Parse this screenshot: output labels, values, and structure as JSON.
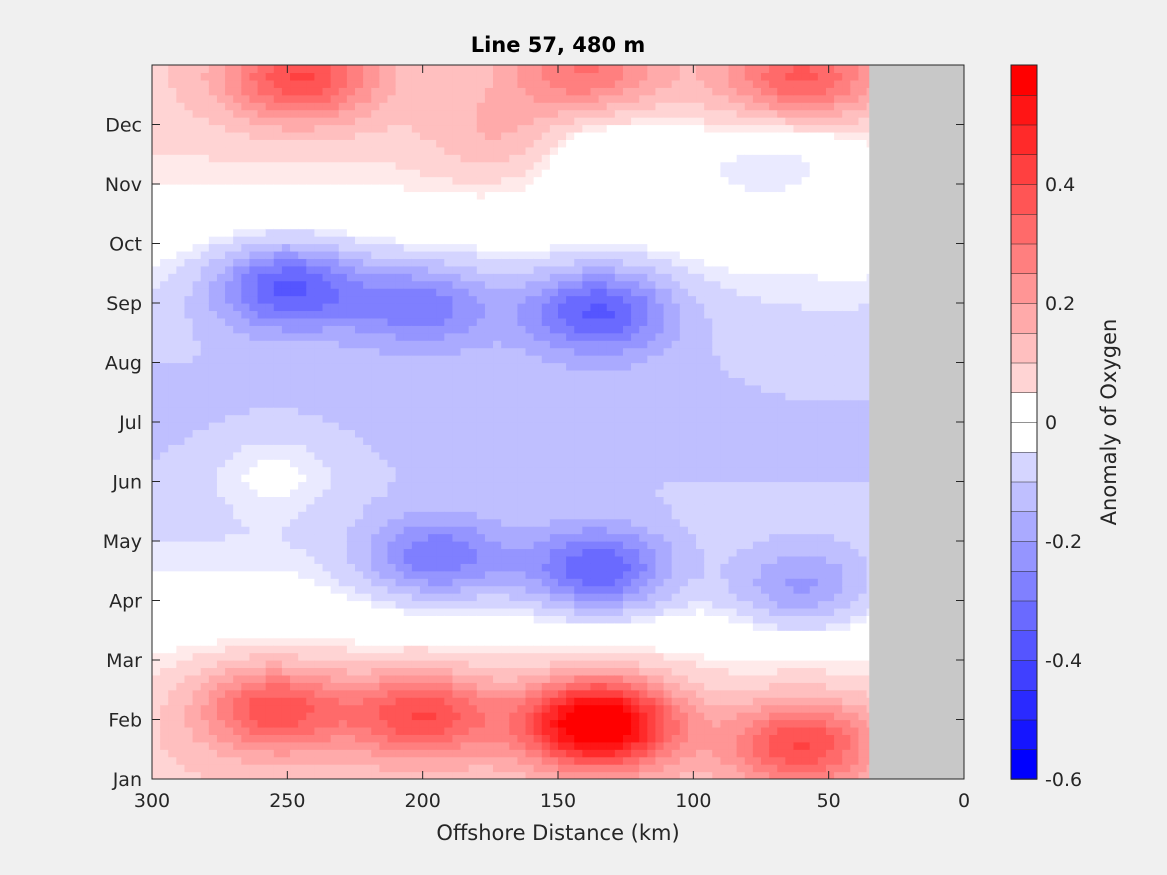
{
  "chart_data": {
    "type": "heatmap",
    "title": "Line 57, 480 m",
    "xlabel": "Offshore Distance (km)",
    "ylabel": "",
    "x_reversed": true,
    "xlim": [
      0,
      300
    ],
    "xticks": [
      300,
      250,
      200,
      150,
      100,
      50,
      0
    ],
    "y_categories": [
      "Jan",
      "Feb",
      "Mar",
      "Apr",
      "May",
      "Jun",
      "Jul",
      "Aug",
      "Sep",
      "Oct",
      "Nov",
      "Dec"
    ],
    "colorbar": {
      "label": "Anomaly of Oxygen",
      "range": [
        -0.6,
        0.6
      ],
      "step": 0.05,
      "ticks": [
        -0.6,
        -0.4,
        -0.2,
        0,
        0.2,
        0.4
      ],
      "tick_labels": [
        "-0.6",
        "-0.4",
        "-0.2",
        "0",
        "0.2",
        "0.4"
      ]
    },
    "no_data_region_km": [
      0,
      35
    ],
    "no_data_color": "#c8c8c8",
    "zero_contour_color": "#000000",
    "blobs": [
      {
        "x": 255,
        "y": 1.2,
        "v": 0.32
      },
      {
        "x": 200,
        "y": 1.1,
        "v": 0.33
      },
      {
        "x": 135,
        "y": 0.95,
        "v": 0.6
      },
      {
        "x": 60,
        "y": 0.6,
        "v": 0.32
      },
      {
        "x": 245,
        "y": 11.8,
        "v": 0.32
      },
      {
        "x": 140,
        "y": 11.9,
        "v": 0.22
      },
      {
        "x": 60,
        "y": 11.8,
        "v": 0.28
      },
      {
        "x": 170,
        "y": 10.8,
        "v": 0.1
      },
      {
        "x": 250,
        "y": 8.3,
        "v": -0.32
      },
      {
        "x": 200,
        "y": 8.0,
        "v": -0.22
      },
      {
        "x": 135,
        "y": 7.9,
        "v": -0.3
      },
      {
        "x": 195,
        "y": 3.7,
        "v": -0.25
      },
      {
        "x": 135,
        "y": 3.5,
        "v": -0.32
      },
      {
        "x": 60,
        "y": 3.2,
        "v": -0.2
      },
      {
        "x": 255,
        "y": 5.2,
        "v": 0.09
      },
      {
        "x": 50,
        "y": 7.0,
        "v": 0.03
      },
      {
        "x": 60,
        "y": 10.5,
        "v": -0.1
      },
      {
        "x": 135,
        "y": 10.6,
        "v": -0.12
      },
      {
        "x": 85,
        "y": 10.3,
        "v": -0.08
      }
    ]
  }
}
